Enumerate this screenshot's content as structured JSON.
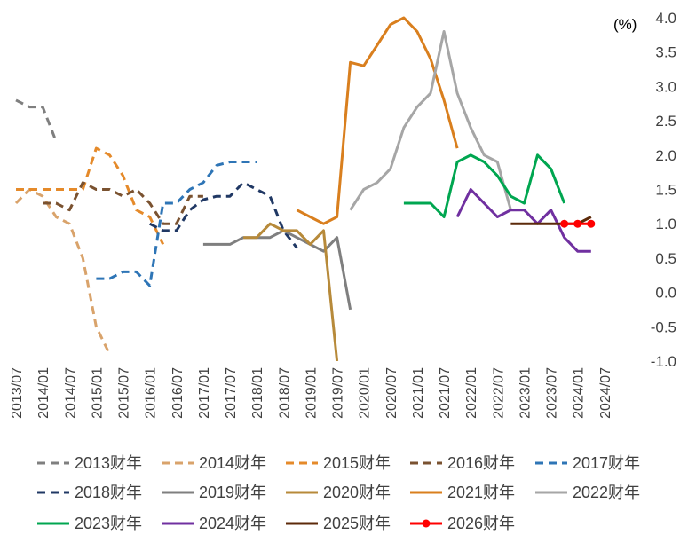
{
  "chart_data": {
    "type": "line",
    "unit_label": "(%)",
    "ylim": [
      -1.0,
      4.0
    ],
    "yticks": [
      "4.0",
      "3.5",
      "3.0",
      "2.5",
      "2.0",
      "1.5",
      "1.0",
      "0.5",
      "0.0",
      "-0.5",
      "-1.0"
    ],
    "x_ticks": [
      "2013/07",
      "2014/01",
      "2014/07",
      "2015/01",
      "2015/07",
      "2016/01",
      "2016/07",
      "2017/01",
      "2017/07",
      "2018/01",
      "2018/07",
      "2019/01",
      "2019/07",
      "2020/01",
      "2020/07",
      "2021/01",
      "2021/07",
      "2022/01",
      "2022/07",
      "2023/01",
      "2023/07",
      "2024/01",
      "2024/07"
    ],
    "grid": false,
    "legend_position": "bottom",
    "series": [
      {
        "name": "2013财年",
        "color": "#7f7f7f",
        "style": "dashed",
        "points": [
          [
            "2013/07",
            2.8
          ],
          [
            "2013/10",
            2.7
          ],
          [
            "2014/01",
            2.7
          ],
          [
            "2014/04",
            2.2
          ]
        ]
      },
      {
        "name": "2014财年",
        "color": "#d9a36b",
        "style": "dashed",
        "points": [
          [
            "2013/07",
            1.3
          ],
          [
            "2013/10",
            1.5
          ],
          [
            "2014/01",
            1.4
          ],
          [
            "2014/04",
            1.1
          ],
          [
            "2014/07",
            1.0
          ],
          [
            "2014/10",
            0.5
          ],
          [
            "2015/01",
            -0.5
          ],
          [
            "2015/04",
            -0.9
          ]
        ]
      },
      {
        "name": "2015财年",
        "color": "#e58a2a",
        "style": "dashed",
        "points": [
          [
            "2013/07",
            1.5
          ],
          [
            "2013/10",
            1.5
          ],
          [
            "2014/01",
            1.5
          ],
          [
            "2014/04",
            1.5
          ],
          [
            "2014/07",
            1.5
          ],
          [
            "2014/10",
            1.5
          ],
          [
            "2015/01",
            2.1
          ],
          [
            "2015/04",
            2.0
          ],
          [
            "2015/07",
            1.7
          ],
          [
            "2015/10",
            1.2
          ],
          [
            "2016/01",
            1.1
          ],
          [
            "2016/04",
            0.7
          ]
        ]
      },
      {
        "name": "2016财年",
        "color": "#7a5230",
        "style": "dashed",
        "points": [
          [
            "2014/01",
            1.3
          ],
          [
            "2014/04",
            1.3
          ],
          [
            "2014/07",
            1.2
          ],
          [
            "2014/10",
            1.6
          ],
          [
            "2015/01",
            1.5
          ],
          [
            "2015/04",
            1.5
          ],
          [
            "2015/07",
            1.4
          ],
          [
            "2015/10",
            1.5
          ],
          [
            "2016/01",
            1.3
          ],
          [
            "2016/04",
            1.0
          ],
          [
            "2016/07",
            1.0
          ],
          [
            "2016/10",
            1.4
          ],
          [
            "2017/01",
            1.4
          ]
        ]
      },
      {
        "name": "2017财年",
        "color": "#2e75b6",
        "style": "dashed",
        "points": [
          [
            "2015/01",
            0.2
          ],
          [
            "2015/04",
            0.2
          ],
          [
            "2015/07",
            0.3
          ],
          [
            "2015/10",
            0.3
          ],
          [
            "2016/01",
            0.1
          ],
          [
            "2016/04",
            1.3
          ],
          [
            "2016/07",
            1.3
          ],
          [
            "2016/10",
            1.5
          ],
          [
            "2017/01",
            1.6
          ],
          [
            "2017/04",
            1.85
          ],
          [
            "2017/07",
            1.9
          ],
          [
            "2017/10",
            1.9
          ],
          [
            "2018/01",
            1.9
          ]
        ]
      },
      {
        "name": "2018财年",
        "color": "#203864",
        "style": "dashed",
        "points": [
          [
            "2016/01",
            1.0
          ],
          [
            "2016/04",
            0.9
          ],
          [
            "2016/07",
            0.9
          ],
          [
            "2016/10",
            1.2
          ],
          [
            "2017/01",
            1.35
          ],
          [
            "2017/04",
            1.4
          ],
          [
            "2017/07",
            1.4
          ],
          [
            "2017/10",
            1.6
          ],
          [
            "2018/01",
            1.5
          ],
          [
            "2018/04",
            1.4
          ],
          [
            "2018/07",
            0.9
          ],
          [
            "2018/10",
            0.65
          ]
        ]
      },
      {
        "name": "2019财年",
        "color": "#7f7f7f",
        "style": "solid",
        "points": [
          [
            "2017/01",
            0.7
          ],
          [
            "2017/04",
            0.7
          ],
          [
            "2017/07",
            0.7
          ],
          [
            "2017/10",
            0.8
          ],
          [
            "2018/01",
            0.8
          ],
          [
            "2018/04",
            0.8
          ],
          [
            "2018/07",
            0.9
          ],
          [
            "2018/10",
            0.8
          ],
          [
            "2019/01",
            0.7
          ],
          [
            "2019/04",
            0.6
          ],
          [
            "2019/07",
            0.8
          ],
          [
            "2019/10",
            -0.25
          ]
        ]
      },
      {
        "name": "2020财年",
        "color": "#b78a3a",
        "style": "solid",
        "points": [
          [
            "2017/10",
            0.8
          ],
          [
            "2018/01",
            0.8
          ],
          [
            "2018/04",
            1.0
          ],
          [
            "2018/07",
            0.9
          ],
          [
            "2018/10",
            0.9
          ],
          [
            "2019/01",
            0.7
          ],
          [
            "2019/04",
            0.9
          ],
          [
            "2019/07",
            -1.0
          ]
        ]
      },
      {
        "name": "2021财年",
        "color": "#d97f1e",
        "style": "solid",
        "points": [
          [
            "2018/10",
            1.2
          ],
          [
            "2019/01",
            1.1
          ],
          [
            "2019/04",
            1.0
          ],
          [
            "2019/07",
            1.1
          ],
          [
            "2019/10",
            3.35
          ],
          [
            "2020/01",
            3.3
          ],
          [
            "2020/04",
            3.6
          ],
          [
            "2020/07",
            3.9
          ],
          [
            "2020/10",
            4.0
          ],
          [
            "2021/01",
            3.8
          ],
          [
            "2021/04",
            3.4
          ],
          [
            "2021/07",
            2.8
          ],
          [
            "2021/10",
            2.1
          ]
        ]
      },
      {
        "name": "2022财年",
        "color": "#a6a6a6",
        "style": "solid",
        "points": [
          [
            "2019/10",
            1.2
          ],
          [
            "2020/01",
            1.5
          ],
          [
            "2020/04",
            1.6
          ],
          [
            "2020/07",
            1.8
          ],
          [
            "2020/10",
            2.4
          ],
          [
            "2021/01",
            2.7
          ],
          [
            "2021/04",
            2.9
          ],
          [
            "2021/07",
            3.8
          ],
          [
            "2021/10",
            2.9
          ],
          [
            "2022/01",
            2.4
          ],
          [
            "2022/04",
            2.0
          ],
          [
            "2022/07",
            1.9
          ],
          [
            "2022/10",
            1.2
          ]
        ]
      },
      {
        "name": "2023财年",
        "color": "#00a650",
        "style": "solid",
        "points": [
          [
            "2020/10",
            1.3
          ],
          [
            "2021/01",
            1.3
          ],
          [
            "2021/04",
            1.3
          ],
          [
            "2021/07",
            1.1
          ],
          [
            "2021/10",
            1.9
          ],
          [
            "2022/01",
            2.0
          ],
          [
            "2022/04",
            1.9
          ],
          [
            "2022/07",
            1.7
          ],
          [
            "2022/10",
            1.4
          ],
          [
            "2023/01",
            1.3
          ],
          [
            "2023/04",
            2.0
          ],
          [
            "2023/07",
            1.8
          ],
          [
            "2023/10",
            1.3
          ]
        ]
      },
      {
        "name": "2024财年",
        "color": "#7030a0",
        "style": "solid",
        "points": [
          [
            "2021/10",
            1.1
          ],
          [
            "2022/01",
            1.5
          ],
          [
            "2022/04",
            1.3
          ],
          [
            "2022/07",
            1.1
          ],
          [
            "2022/10",
            1.2
          ],
          [
            "2023/01",
            1.2
          ],
          [
            "2023/04",
            1.0
          ],
          [
            "2023/07",
            1.2
          ],
          [
            "2023/10",
            0.8
          ],
          [
            "2024/01",
            0.6
          ],
          [
            "2024/04",
            0.6
          ]
        ]
      },
      {
        "name": "2025财年",
        "color": "#5c2a0a",
        "style": "solid",
        "points": [
          [
            "2022/10",
            1.0
          ],
          [
            "2023/01",
            1.0
          ],
          [
            "2023/04",
            1.0
          ],
          [
            "2023/07",
            1.0
          ],
          [
            "2023/10",
            1.0
          ],
          [
            "2024/01",
            1.0
          ],
          [
            "2024/04",
            1.1
          ]
        ]
      },
      {
        "name": "2026财年",
        "color": "#ff0000",
        "style": "marker",
        "points": [
          [
            "2023/10",
            1.0
          ],
          [
            "2024/01",
            1.0
          ],
          [
            "2024/04",
            1.0
          ]
        ]
      }
    ]
  }
}
